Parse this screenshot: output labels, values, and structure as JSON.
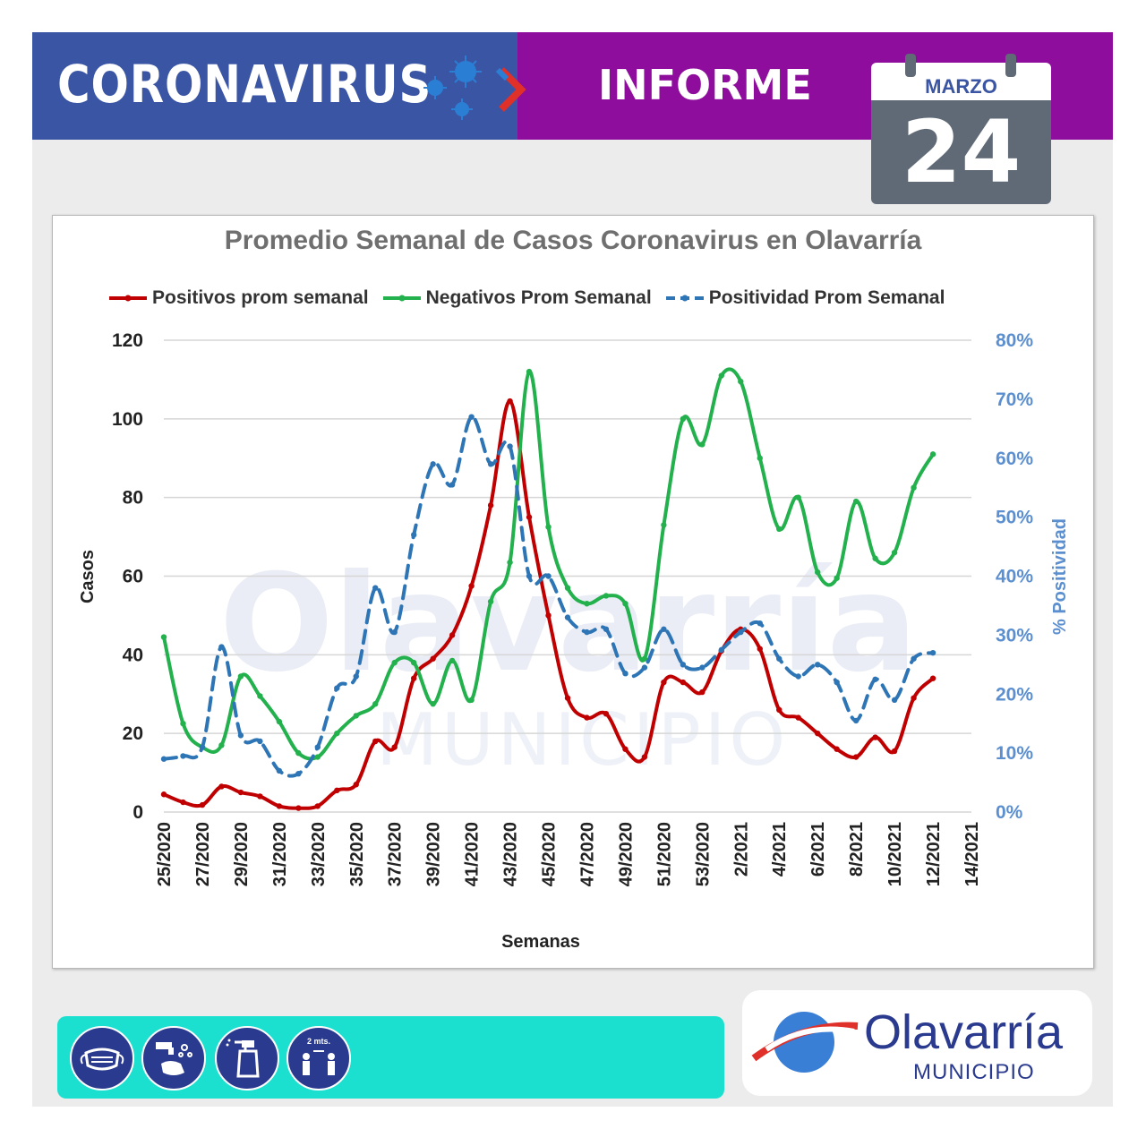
{
  "header": {
    "title_left": "CORONAVIRUS",
    "title_right": "INFORME",
    "colors": {
      "left_band": "#3a55a4",
      "right_band": "#8e0d9c"
    }
  },
  "calendar": {
    "month": "MARZO",
    "day": "24"
  },
  "chart_data": {
    "type": "line",
    "title": "Promedio Semanal de Casos Coronavirus en Olavarría",
    "xlabel": "Semanas",
    "ylabel": "Casos",
    "y2label": "% Positividad",
    "ylim": [
      0,
      120
    ],
    "y2lim": [
      0,
      80
    ],
    "yticks": [
      "0",
      "20",
      "40",
      "60",
      "80",
      "100",
      "120"
    ],
    "y2ticks": [
      "0%",
      "10%",
      "20%",
      "30%",
      "40%",
      "50%",
      "60%",
      "70%",
      "80%"
    ],
    "x_tick_labels": [
      "25/2020",
      "27/2020",
      "29/2020",
      "31/2020",
      "33/2020",
      "35/2020",
      "37/2020",
      "39/2020",
      "41/2020",
      "43/2020",
      "45/2020",
      "47/2020",
      "49/2020",
      "51/2020",
      "53/2020",
      "2/2021",
      "4/2021",
      "6/2021",
      "8/2021",
      "10/2021",
      "12/2021",
      "14/2021"
    ],
    "categories": [
      "25/2020",
      "26/2020",
      "27/2020",
      "28/2020",
      "29/2020",
      "30/2020",
      "31/2020",
      "32/2020",
      "33/2020",
      "34/2020",
      "35/2020",
      "36/2020",
      "37/2020",
      "38/2020",
      "39/2020",
      "40/2020",
      "41/2020",
      "42/2020",
      "43/2020",
      "44/2020",
      "45/2020",
      "46/2020",
      "47/2020",
      "48/2020",
      "49/2020",
      "50/2020",
      "51/2020",
      "52/2020",
      "53/2020",
      "1/2021",
      "2/2021",
      "3/2021",
      "4/2021",
      "5/2021",
      "6/2021",
      "7/2021",
      "8/2021",
      "9/2021",
      "10/2021",
      "11/2021",
      "12/2021"
    ],
    "grid": true,
    "legend_position": "top",
    "series": [
      {
        "name": "Positivos prom semanal",
        "axis": "left",
        "color": "#c00000",
        "style": "solid",
        "values": [
          4.5,
          2.5,
          1.8,
          6.5,
          5,
          4,
          1.5,
          1,
          1.5,
          5.5,
          7,
          18,
          16.5,
          34,
          39,
          45,
          57.5,
          78,
          104.5,
          75,
          50,
          29,
          24,
          25,
          16,
          14,
          33,
          33,
          30.5,
          41,
          46.5,
          41.5,
          26,
          24,
          20,
          16,
          14,
          19,
          15.5,
          29,
          34
        ]
      },
      {
        "name": "Negativos Prom Semanal",
        "axis": "left",
        "color": "#22b14c",
        "style": "solid",
        "values": [
          44.5,
          22.5,
          16.5,
          17,
          34.5,
          29.5,
          23,
          15,
          14,
          20,
          24.5,
          27.5,
          38,
          38,
          27.5,
          38.5,
          28.5,
          53.5,
          63.5,
          112,
          72.5,
          57,
          53,
          55,
          53,
          39,
          73,
          100,
          93.5,
          111,
          109.5,
          90,
          72,
          80,
          61,
          59.5,
          79,
          64.5,
          66,
          82.5,
          91
        ]
      },
      {
        "name": "Positividad Prom Semanal",
        "axis": "right",
        "color": "#2e75b6",
        "style": "dashed",
        "values": [
          9,
          9.5,
          11,
          28,
          13,
          12,
          7,
          6.5,
          11,
          21,
          23,
          38,
          30.5,
          47,
          59,
          55.5,
          67,
          59,
          62,
          40,
          40,
          33,
          30.5,
          31,
          23.5,
          24.5,
          31,
          25,
          24.5,
          27.5,
          30.5,
          32,
          26,
          23,
          25,
          22,
          15.5,
          22.5,
          19,
          26,
          27
        ]
      }
    ]
  },
  "watermark": {
    "text": "Olavarría",
    "sub": "MUNICIPIO"
  },
  "footer": {
    "icons": [
      "mask-icon",
      "handwash-icon",
      "sanitizer-icon",
      "distance-icon"
    ],
    "distance_label": "2 mts.",
    "logo_name": "Olavarría",
    "logo_sub": "MUNICIPIO"
  }
}
